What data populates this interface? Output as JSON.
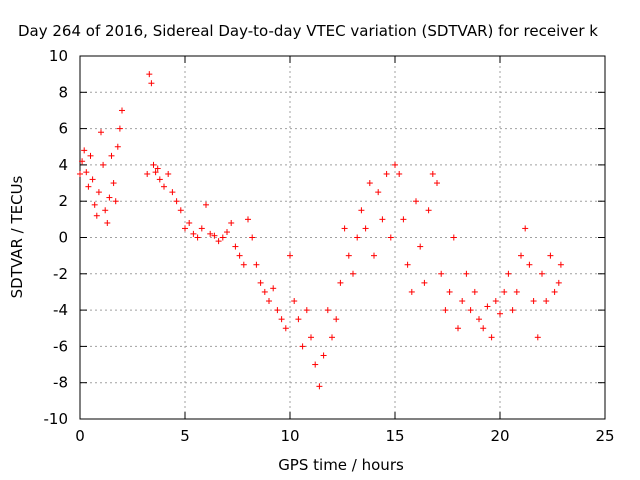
{
  "chart_data": {
    "type": "scatter",
    "title": "Day 264 of 2016, Sidereal Day-to-day VTEC variation (SDTVAR) for receiver k",
    "xlabel": "GPS time / hours",
    "ylabel": "SDTVAR / TECUs",
    "xlim": [
      0,
      25
    ],
    "ylim": [
      -10,
      10
    ],
    "xticks": [
      "0",
      "5",
      "10",
      "15",
      "20",
      "25"
    ],
    "yticks": [
      "-10",
      "-8",
      "-6",
      "-4",
      "-2",
      "0",
      "2",
      "4",
      "6",
      "8",
      "10"
    ],
    "grid": true,
    "marker": "+",
    "series": [
      {
        "name": "SDTVAR",
        "color": "#ff0000",
        "x": [
          0.0,
          0.1,
          0.2,
          0.3,
          0.4,
          0.5,
          0.6,
          0.7,
          0.8,
          0.9,
          1.0,
          1.1,
          1.2,
          1.3,
          1.4,
          1.5,
          1.6,
          1.7,
          1.8,
          1.9,
          2.0,
          3.2,
          3.3,
          3.4,
          3.5,
          3.6,
          3.7,
          3.8,
          4.0,
          4.2,
          4.4,
          4.6,
          4.8,
          5.0,
          5.2,
          5.4,
          5.6,
          5.8,
          6.0,
          6.2,
          6.4,
          6.6,
          6.8,
          7.0,
          7.2,
          7.4,
          7.6,
          7.8,
          8.0,
          8.2,
          8.4,
          8.6,
          8.8,
          9.0,
          9.2,
          9.4,
          9.6,
          9.8,
          10.0,
          10.2,
          10.4,
          10.6,
          10.8,
          11.0,
          11.2,
          11.4,
          11.6,
          11.8,
          12.0,
          12.2,
          12.4,
          12.6,
          12.8,
          13.0,
          13.2,
          13.4,
          13.6,
          13.8,
          14.0,
          14.2,
          14.4,
          14.6,
          14.8,
          15.0,
          15.2,
          15.4,
          15.6,
          15.8,
          16.0,
          16.2,
          16.4,
          16.6,
          16.8,
          17.0,
          17.2,
          17.4,
          17.6,
          17.8,
          18.0,
          18.2,
          18.4,
          18.6,
          18.8,
          19.0,
          19.2,
          19.4,
          19.6,
          19.8,
          20.0,
          20.2,
          20.4,
          20.6,
          20.8,
          21.0,
          21.2,
          21.4,
          21.6,
          21.8,
          22.0,
          22.2,
          22.4,
          22.6,
          22.8,
          22.9
        ],
        "y": [
          3.5,
          4.2,
          4.8,
          3.6,
          2.8,
          4.5,
          3.2,
          1.8,
          1.2,
          2.5,
          5.8,
          4.0,
          1.5,
          0.8,
          2.2,
          4.5,
          3.0,
          2.0,
          5.0,
          6.0,
          7.0,
          3.5,
          9.0,
          8.5,
          4.0,
          3.6,
          3.8,
          3.2,
          2.8,
          3.5,
          2.5,
          2.0,
          1.5,
          0.5,
          0.8,
          0.2,
          0.0,
          0.5,
          1.8,
          0.2,
          0.1,
          -0.2,
          0.0,
          0.3,
          0.8,
          -0.5,
          -1.0,
          -1.5,
          1.0,
          0.0,
          -1.5,
          -2.5,
          -3.0,
          -3.5,
          -2.8,
          -4.0,
          -4.5,
          -5.0,
          -1.0,
          -3.5,
          -4.5,
          -6.0,
          -4.0,
          -5.5,
          -7.0,
          -8.2,
          -6.5,
          -4.0,
          -5.5,
          -4.5,
          -2.5,
          0.5,
          -1.0,
          -2.0,
          0.0,
          1.5,
          0.5,
          3.0,
          -1.0,
          2.5,
          1.0,
          3.5,
          0.0,
          4.0,
          3.5,
          1.0,
          -1.5,
          -3.0,
          2.0,
          -0.5,
          -2.5,
          1.5,
          3.5,
          3.0,
          -2.0,
          -4.0,
          -3.0,
          0.0,
          -5.0,
          -3.5,
          -2.0,
          -4.0,
          -3.0,
          -4.5,
          -5.0,
          -3.8,
          -5.5,
          -3.5,
          -4.2,
          -3.0,
          -2.0,
          -4.0,
          -3.0,
          -1.0,
          0.5,
          -1.5,
          -3.5,
          -5.5,
          -2.0,
          -3.5,
          -1.0,
          -3.0,
          -2.5,
          -1.5
        ]
      }
    ]
  }
}
